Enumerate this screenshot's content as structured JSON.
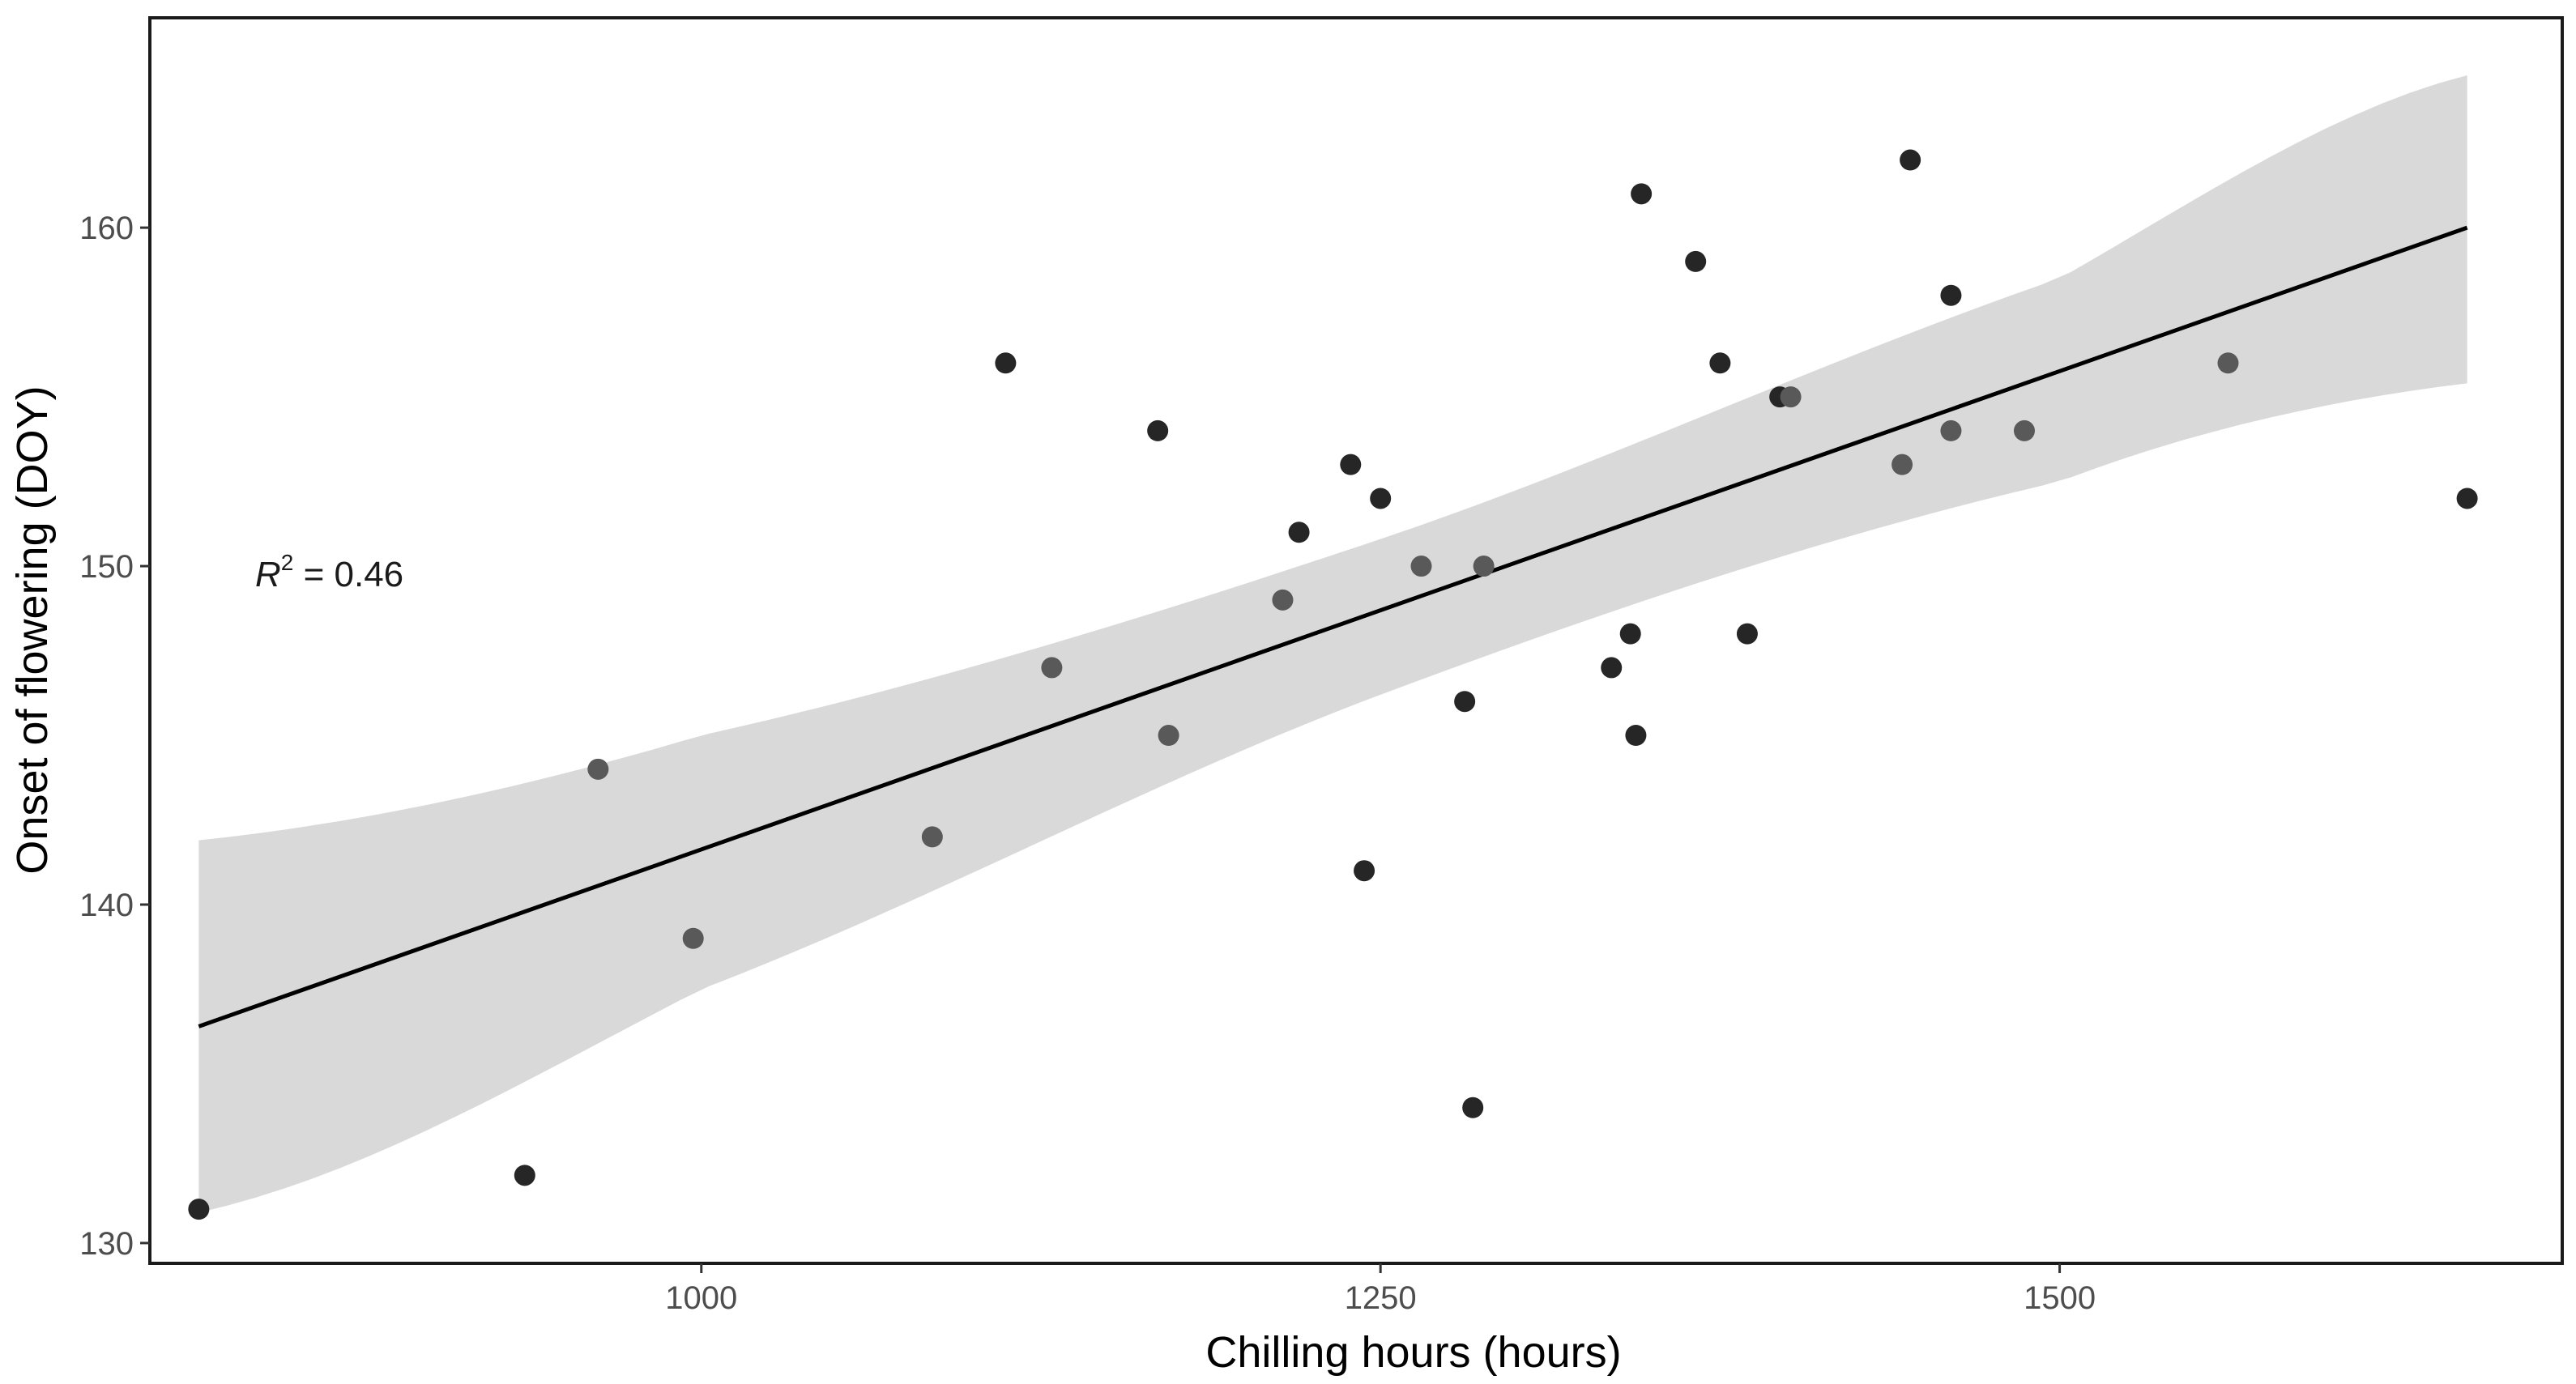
{
  "chart_data": {
    "type": "scatter",
    "title": "",
    "xlabel": "Chilling hours (hours)",
    "ylabel": "Onset of flowering (DOY)",
    "xlim": [
      797,
      1685
    ],
    "ylim": [
      129.4,
      166.2
    ],
    "x_ticks": [
      1000,
      1250,
      1500
    ],
    "x_tick_labels": [
      "1000",
      "1250",
      "1500"
    ],
    "y_ticks": [
      130,
      140,
      150,
      160
    ],
    "y_tick_labels": [
      "130",
      "140",
      "150",
      "160"
    ],
    "grid": false,
    "legend": "none",
    "annotation": {
      "r2_symbol": "R",
      "r2_exponent": "2",
      "r2_text": " = 0.46",
      "value": 0.46
    },
    "colors": {
      "dark_point": "#262626",
      "light_point": "#595959",
      "band": "#d9d9d9",
      "line": "#000000"
    },
    "regression_line": {
      "x": [
        815,
        1650
      ],
      "y": [
        136.4,
        160.0
      ]
    },
    "confidence_band": [
      {
        "x": 815,
        "lower": 130.9,
        "upper": 141.9
      },
      {
        "x": 1000,
        "lower": 137.5,
        "upper": 145.0
      },
      {
        "x": 1250,
        "lower": 146.2,
        "upper": 150.8
      },
      {
        "x": 1500,
        "lower": 152.5,
        "upper": 158.5
      },
      {
        "x": 1650,
        "lower": 155.4,
        "upper": 164.5
      }
    ],
    "points": [
      {
        "x": 815,
        "y": 131,
        "shade": "dark"
      },
      {
        "x": 935,
        "y": 132,
        "shade": "dark"
      },
      {
        "x": 962,
        "y": 144,
        "shade": "light"
      },
      {
        "x": 997,
        "y": 139,
        "shade": "light"
      },
      {
        "x": 1085,
        "y": 142,
        "shade": "light"
      },
      {
        "x": 1112,
        "y": 156,
        "shade": "dark"
      },
      {
        "x": 1129,
        "y": 147,
        "shade": "light"
      },
      {
        "x": 1168,
        "y": 154,
        "shade": "dark"
      },
      {
        "x": 1172,
        "y": 145,
        "shade": "light"
      },
      {
        "x": 1214,
        "y": 149,
        "shade": "light"
      },
      {
        "x": 1220,
        "y": 151,
        "shade": "dark"
      },
      {
        "x": 1239,
        "y": 153,
        "shade": "dark"
      },
      {
        "x": 1244,
        "y": 141,
        "shade": "dark"
      },
      {
        "x": 1250,
        "y": 152,
        "shade": "dark"
      },
      {
        "x": 1265,
        "y": 150,
        "shade": "light"
      },
      {
        "x": 1281,
        "y": 146,
        "shade": "dark"
      },
      {
        "x": 1284,
        "y": 134,
        "shade": "dark"
      },
      {
        "x": 1288,
        "y": 150,
        "shade": "light"
      },
      {
        "x": 1335,
        "y": 147,
        "shade": "dark"
      },
      {
        "x": 1342,
        "y": 148,
        "shade": "dark"
      },
      {
        "x": 1344,
        "y": 145,
        "shade": "dark"
      },
      {
        "x": 1346,
        "y": 161,
        "shade": "dark"
      },
      {
        "x": 1366,
        "y": 159,
        "shade": "dark"
      },
      {
        "x": 1375,
        "y": 156,
        "shade": "dark"
      },
      {
        "x": 1385,
        "y": 148,
        "shade": "dark"
      },
      {
        "x": 1397,
        "y": 155,
        "shade": "dark"
      },
      {
        "x": 1401,
        "y": 155,
        "shade": "light"
      },
      {
        "x": 1442,
        "y": 153,
        "shade": "light"
      },
      {
        "x": 1445,
        "y": 162,
        "shade": "dark"
      },
      {
        "x": 1460,
        "y": 158,
        "shade": "dark"
      },
      {
        "x": 1460,
        "y": 154,
        "shade": "light"
      },
      {
        "x": 1487,
        "y": 154,
        "shade": "light"
      },
      {
        "x": 1562,
        "y": 156,
        "shade": "light"
      },
      {
        "x": 1650,
        "y": 152,
        "shade": "dark"
      }
    ]
  }
}
